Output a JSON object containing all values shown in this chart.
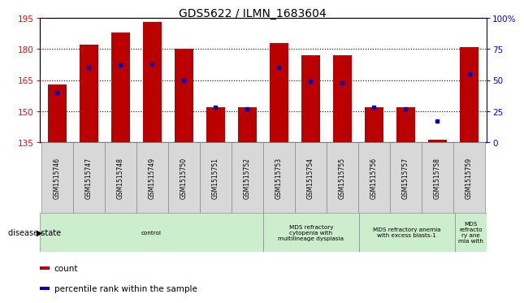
{
  "title": "GDS5622 / ILMN_1683604",
  "samples": [
    "GSM1515746",
    "GSM1515747",
    "GSM1515748",
    "GSM1515749",
    "GSM1515750",
    "GSM1515751",
    "GSM1515752",
    "GSM1515753",
    "GSM1515754",
    "GSM1515755",
    "GSM1515756",
    "GSM1515757",
    "GSM1515758",
    "GSM1515759"
  ],
  "counts": [
    163,
    182,
    188,
    193,
    180,
    152,
    152,
    183,
    177,
    177,
    152,
    152,
    136,
    181
  ],
  "percentile_ranks": [
    40,
    60,
    62,
    63,
    50,
    28,
    27,
    60,
    49,
    48,
    28,
    27,
    17,
    55
  ],
  "ymin": 135,
  "ymax": 195,
  "yticks": [
    135,
    150,
    165,
    180,
    195
  ],
  "right_yticks": [
    0,
    25,
    50,
    75,
    100
  ],
  "bar_color": "#bb0000",
  "marker_color": "#0000bb",
  "sample_box_color": "#d8d8d8",
  "disease_groups": [
    {
      "label": "control",
      "start": 0,
      "end": 7
    },
    {
      "label": "MDS refractory\ncytopenia with\nmultilineage dysplasia",
      "start": 7,
      "end": 10
    },
    {
      "label": "MDS refractory anemia\nwith excess blasts-1",
      "start": 10,
      "end": 13
    },
    {
      "label": "MDS\nrefracto\nry ane\nmia with",
      "start": 13,
      "end": 14
    }
  ],
  "disease_box_color": "#cceecc",
  "legend_count_label": "count",
  "legend_pct_label": "percentile rank within the sample",
  "disease_state_label": "disease state"
}
